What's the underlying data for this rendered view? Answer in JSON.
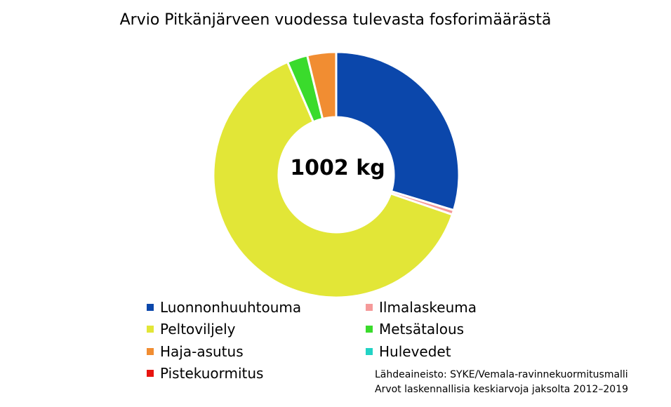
{
  "chart_data": {
    "type": "pie",
    "title": "Arvio Pitkänjärveen vuodessa tulevasta fosforimäärästä",
    "center_label": "1002 kg",
    "legend_position": "bottom",
    "categories": [
      "Luonnonhuuhtouma",
      "Ilmalaskeuma",
      "Peltoviljely",
      "Metsätalous",
      "Haja-asutus",
      "Hulevedet",
      "Pistekuormitus"
    ],
    "values": [
      297,
      6,
      633,
      27,
      38,
      0,
      0
    ],
    "colors": [
      "#0b47ab",
      "#f59a9a",
      "#e2e637",
      "#3adb2c",
      "#f18d32",
      "#22d3c5",
      "#e8140f"
    ]
  },
  "source": {
    "line1": "Lähdeaineisto: SYKE/Vemala-ravinnekuormitusmalli",
    "line2": "Arvot laskennallisia keskiarvoja jaksolta 2012–2019"
  }
}
